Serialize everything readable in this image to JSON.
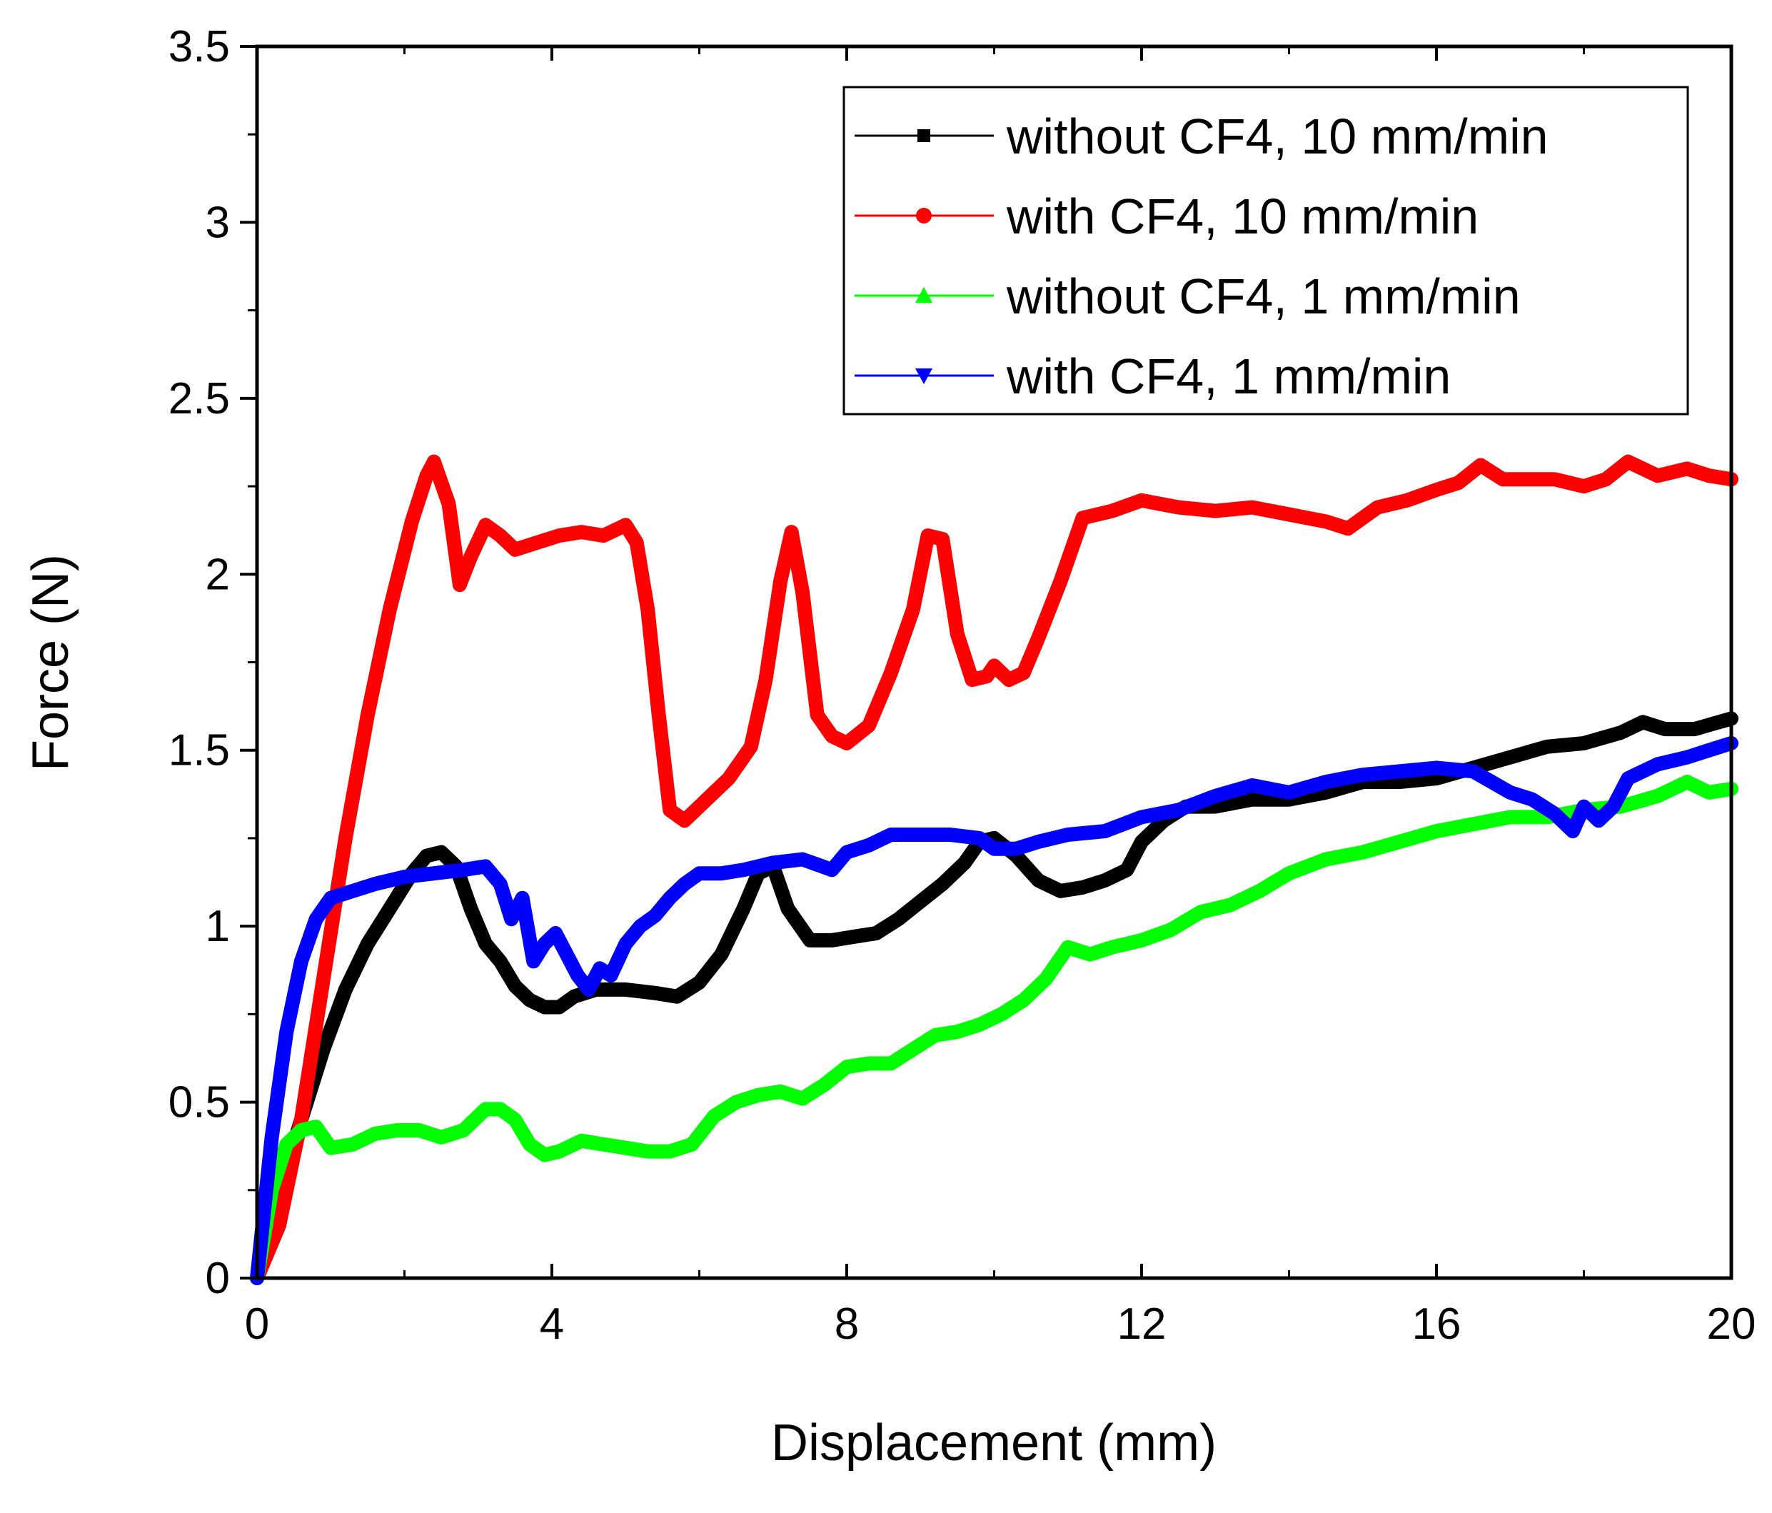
{
  "chart_data": {
    "type": "line",
    "title": "",
    "xlabel": "Displacement (mm)",
    "ylabel": "Force (N)",
    "xlim": [
      0,
      20
    ],
    "ylim": [
      0,
      3.5
    ],
    "xticks": [
      0,
      4,
      8,
      12,
      16,
      20
    ],
    "xtick_labels": [
      "0",
      "4",
      "8",
      "12",
      "16",
      "20"
    ],
    "yticks": [
      0,
      0.5,
      1,
      1.5,
      2,
      2.5,
      3,
      3.5
    ],
    "ytick_labels": [
      "0",
      "0.5",
      "1",
      "1.5",
      "2",
      "2.5",
      "3",
      "3.5"
    ],
    "grid": false,
    "legend_position": "top-right",
    "series": [
      {
        "name": "without CF4, 10 mm/min",
        "color": "#000000",
        "marker": "square",
        "x": [
          0,
          0.3,
          0.6,
          0.9,
          1.2,
          1.5,
          1.8,
          2.1,
          2.3,
          2.5,
          2.7,
          2.9,
          3.1,
          3.3,
          3.5,
          3.7,
          3.9,
          4.1,
          4.3,
          4.6,
          5.0,
          5.4,
          5.7,
          6.0,
          6.3,
          6.6,
          6.8,
          7.0,
          7.2,
          7.5,
          7.8,
          8.1,
          8.4,
          8.7,
          9.0,
          9.3,
          9.6,
          9.8,
          10.0,
          10.3,
          10.6,
          10.9,
          11.2,
          11.5,
          11.8,
          12.0,
          12.3,
          12.6,
          13.0,
          13.5,
          14.0,
          14.5,
          15.0,
          15.5,
          16.0,
          16.5,
          17.0,
          17.5,
          18.0,
          18.5,
          18.8,
          19.1,
          19.5,
          20.0
        ],
        "y": [
          0,
          0.25,
          0.45,
          0.65,
          0.82,
          0.95,
          1.05,
          1.15,
          1.2,
          1.21,
          1.17,
          1.05,
          0.95,
          0.9,
          0.83,
          0.79,
          0.77,
          0.77,
          0.8,
          0.82,
          0.82,
          0.81,
          0.8,
          0.84,
          0.92,
          1.05,
          1.15,
          1.17,
          1.05,
          0.96,
          0.96,
          0.97,
          0.98,
          1.02,
          1.07,
          1.12,
          1.18,
          1.24,
          1.25,
          1.2,
          1.13,
          1.1,
          1.11,
          1.13,
          1.16,
          1.24,
          1.3,
          1.34,
          1.34,
          1.36,
          1.36,
          1.38,
          1.41,
          1.41,
          1.42,
          1.45,
          1.48,
          1.51,
          1.52,
          1.55,
          1.58,
          1.56,
          1.56,
          1.59
        ]
      },
      {
        "name": "with CF4, 10 mm/min",
        "color": "#ff0000",
        "marker": "circle",
        "x": [
          0,
          0.3,
          0.6,
          0.9,
          1.2,
          1.5,
          1.8,
          2.1,
          2.3,
          2.4,
          2.6,
          2.75,
          2.9,
          3.1,
          3.3,
          3.5,
          3.8,
          4.1,
          4.4,
          4.7,
          5.0,
          5.15,
          5.3,
          5.45,
          5.6,
          5.8,
          6.1,
          6.4,
          6.7,
          6.9,
          7.1,
          7.25,
          7.4,
          7.6,
          7.8,
          8.0,
          8.3,
          8.6,
          8.9,
          9.1,
          9.3,
          9.5,
          9.7,
          9.9,
          10.0,
          10.2,
          10.4,
          10.6,
          10.9,
          11.2,
          11.6,
          12.0,
          12.5,
          13.0,
          13.5,
          14.0,
          14.5,
          14.8,
          15.2,
          15.6,
          16.0,
          16.3,
          16.6,
          16.9,
          17.2,
          17.6,
          18.0,
          18.3,
          18.6,
          19.0,
          19.4,
          19.7,
          20.0
        ],
        "y": [
          0,
          0.15,
          0.45,
          0.85,
          1.25,
          1.6,
          1.9,
          2.15,
          2.28,
          2.32,
          2.2,
          1.97,
          2.05,
          2.14,
          2.11,
          2.07,
          2.09,
          2.11,
          2.12,
          2.11,
          2.14,
          2.09,
          1.9,
          1.6,
          1.33,
          1.3,
          1.36,
          1.42,
          1.51,
          1.7,
          1.98,
          2.12,
          1.95,
          1.6,
          1.54,
          1.52,
          1.57,
          1.72,
          1.9,
          2.11,
          2.1,
          1.83,
          1.7,
          1.71,
          1.74,
          1.7,
          1.72,
          1.82,
          1.98,
          2.16,
          2.18,
          2.21,
          2.19,
          2.18,
          2.19,
          2.17,
          2.15,
          2.13,
          2.19,
          2.21,
          2.24,
          2.26,
          2.31,
          2.27,
          2.27,
          2.27,
          2.25,
          2.27,
          2.32,
          2.28,
          2.3,
          2.28,
          2.27
        ]
      },
      {
        "name": "without CF4, 1 mm/min",
        "color": "#00ff00",
        "marker": "triangle-up",
        "x": [
          0,
          0.2,
          0.4,
          0.6,
          0.8,
          1.0,
          1.3,
          1.6,
          1.9,
          2.2,
          2.5,
          2.8,
          3.1,
          3.3,
          3.5,
          3.7,
          3.9,
          4.1,
          4.4,
          4.7,
          5.0,
          5.3,
          5.6,
          5.9,
          6.2,
          6.5,
          6.8,
          7.1,
          7.4,
          7.7,
          8.0,
          8.3,
          8.6,
          8.9,
          9.2,
          9.5,
          9.8,
          10.1,
          10.4,
          10.7,
          11.0,
          11.3,
          11.6,
          12.0,
          12.4,
          12.8,
          13.2,
          13.6,
          14.0,
          14.5,
          15.0,
          15.5,
          16.0,
          16.5,
          17.0,
          17.5,
          18.0,
          18.5,
          19.0,
          19.4,
          19.7,
          20.0
        ],
        "y": [
          0,
          0.25,
          0.38,
          0.42,
          0.43,
          0.37,
          0.38,
          0.41,
          0.42,
          0.42,
          0.4,
          0.42,
          0.48,
          0.48,
          0.45,
          0.38,
          0.35,
          0.36,
          0.39,
          0.38,
          0.37,
          0.36,
          0.36,
          0.38,
          0.46,
          0.5,
          0.52,
          0.53,
          0.51,
          0.55,
          0.6,
          0.61,
          0.61,
          0.65,
          0.69,
          0.7,
          0.72,
          0.75,
          0.79,
          0.85,
          0.94,
          0.92,
          0.94,
          0.96,
          0.99,
          1.04,
          1.06,
          1.1,
          1.15,
          1.19,
          1.21,
          1.24,
          1.27,
          1.29,
          1.31,
          1.31,
          1.33,
          1.34,
          1.37,
          1.41,
          1.38,
          1.39
        ]
      },
      {
        "name": "with CF4, 1 mm/min",
        "color": "#0000ff",
        "marker": "triangle-down",
        "x": [
          0,
          0.2,
          0.4,
          0.6,
          0.8,
          1.0,
          1.3,
          1.6,
          2.0,
          2.4,
          2.8,
          3.1,
          3.3,
          3.45,
          3.6,
          3.75,
          3.9,
          4.05,
          4.2,
          4.35,
          4.5,
          4.65,
          4.8,
          5.0,
          5.2,
          5.4,
          5.6,
          5.8,
          6.0,
          6.3,
          6.6,
          7.0,
          7.4,
          7.8,
          8.0,
          8.3,
          8.6,
          9.0,
          9.4,
          9.8,
          10.0,
          10.3,
          10.6,
          11.0,
          11.5,
          12.0,
          12.5,
          13.0,
          13.5,
          14.0,
          14.5,
          15.0,
          15.5,
          16.0,
          16.5,
          17.0,
          17.3,
          17.6,
          17.85,
          18.0,
          18.2,
          18.4,
          18.6,
          19.0,
          19.4,
          19.7,
          20.0
        ],
        "y": [
          0,
          0.4,
          0.7,
          0.9,
          1.02,
          1.08,
          1.1,
          1.12,
          1.14,
          1.15,
          1.16,
          1.17,
          1.12,
          1.02,
          1.08,
          0.9,
          0.95,
          0.98,
          0.92,
          0.86,
          0.82,
          0.88,
          0.86,
          0.95,
          1.0,
          1.03,
          1.08,
          1.12,
          1.15,
          1.15,
          1.16,
          1.18,
          1.19,
          1.16,
          1.21,
          1.23,
          1.26,
          1.26,
          1.26,
          1.25,
          1.22,
          1.22,
          1.24,
          1.26,
          1.27,
          1.31,
          1.33,
          1.37,
          1.4,
          1.38,
          1.41,
          1.43,
          1.44,
          1.45,
          1.44,
          1.38,
          1.36,
          1.32,
          1.27,
          1.34,
          1.3,
          1.34,
          1.42,
          1.46,
          1.48,
          1.5,
          1.52
        ]
      }
    ]
  }
}
